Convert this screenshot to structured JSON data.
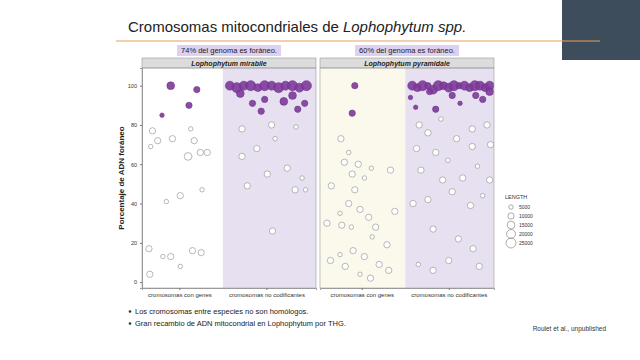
{
  "slide": {
    "title": "Cromosomas mitocondriales de",
    "title_italic": "Lophophytum spp.",
    "bullets": [
      "Los cromosomas entre especies no son homólogos.",
      "Gran recambio de ADN mitocondrial en Lophophytum por THG."
    ],
    "citation": "Roulet et al., unpublished"
  },
  "chart_data": [
    {
      "type": "scatter",
      "title": "Lophophytum mirabile",
      "subtitle": "74% del genoma es foráneo.",
      "y_label": "Porcentaje de ADN foráneo",
      "x": [
        0.9,
        0.8,
        1.11,
        1.2,
        0.69,
        0.75,
        0.67,
        0.92,
        1.13,
        1.17,
        1.1,
        1.24,
        1.32,
        1.01,
        0.85,
        1.26,
        0.65,
        0.81,
        0.9,
        1.01,
        1.15,
        1.25,
        0.66,
        1.58,
        1.66,
        1.74,
        1.82,
        1.9,
        1.98,
        2.06,
        2.14,
        2.22,
        2.3,
        2.38,
        2.46,
        1.7,
        1.98,
        2.3,
        2.44,
        1.84,
        2.2,
        2.36,
        1.94,
        1.72,
        2.06,
        2.34,
        1.89,
        2.1,
        1.72,
        2.24,
        2.41,
        2.01,
        2.33,
        2.45,
        1.78,
        2.07
      ],
      "values": [
        100,
        85,
        90,
        98,
        77,
        72,
        69,
        73,
        78,
        72,
        64,
        66,
        66,
        44,
        41,
        47,
        17,
        13,
        13,
        8,
        16,
        15,
        4,
        100,
        99,
        100,
        100,
        99,
        100,
        100,
        99,
        100,
        100,
        99,
        100,
        96,
        93,
        95,
        91,
        91,
        92,
        88,
        87,
        78,
        80,
        79,
        68,
        73,
        64,
        58,
        53,
        55,
        47,
        47,
        49,
        26
      ],
      "size": [
        15000,
        5000,
        10000,
        10000,
        10000,
        10000,
        5000,
        10000,
        5000,
        10000,
        15000,
        10000,
        10000,
        10000,
        5000,
        5000,
        10000,
        5000,
        10000,
        5000,
        10000,
        10000,
        10000,
        20000,
        25000,
        20000,
        25000,
        15000,
        25000,
        20000,
        25000,
        20000,
        25000,
        20000,
        25000,
        15000,
        10000,
        15000,
        10000,
        10000,
        15000,
        10000,
        10000,
        10000,
        10000,
        5000,
        10000,
        5000,
        10000,
        10000,
        5000,
        10000,
        10000,
        5000,
        10000,
        10000
      ],
      "colors": [
        "#7e3a9a",
        "#7e3a9a",
        "#7e3a9a",
        "#7e3a9a",
        "#ffffff",
        "#ffffff",
        "#ffffff",
        "#ffffff",
        "#ffffff",
        "#ffffff",
        "#ffffff",
        "#ffffff",
        "#ffffff",
        "#ffffff",
        "#ffffff",
        "#ffffff",
        "#ffffff",
        "#ffffff",
        "#ffffff",
        "#ffffff",
        "#ffffff",
        "#ffffff",
        "#ffffff",
        "#7e3a9a",
        "#7e3a9a",
        "#7e3a9a",
        "#7e3a9a",
        "#7e3a9a",
        "#7e3a9a",
        "#7e3a9a",
        "#7e3a9a",
        "#7e3a9a",
        "#7e3a9a",
        "#7e3a9a",
        "#7e3a9a",
        "#7e3a9a",
        "#7e3a9a",
        "#7e3a9a",
        "#7e3a9a",
        "#7e3a9a",
        "#7e3a9a",
        "#7e3a9a",
        "#7e3a9a",
        "#ffffff",
        "#ffffff",
        "#ffffff",
        "#ffffff",
        "#ffffff",
        "#ffffff",
        "#ffffff",
        "#ffffff",
        "#ffffff",
        "#ffffff",
        "#ffffff",
        "#ffffff",
        "#ffffff"
      ],
      "xlim": [
        0.57,
        2.57
      ],
      "xticks": [
        {
          "value": 1,
          "label": "cromosomas con genes"
        },
        {
          "value": 2,
          "label": "cromosomas no codificantes"
        }
      ],
      "ylim": [
        -3,
        109
      ],
      "yticks": [
        0,
        20,
        40,
        60,
        80,
        100
      ]
    },
    {
      "type": "scatter",
      "title": "Lophophytum pyramidale",
      "subtitle": "60% del genoma es foráneo.",
      "x": [
        0.92,
        0.89,
        0.76,
        0.85,
        0.96,
        0.8,
        1.11,
        0.89,
        0.65,
        1.03,
        0.92,
        1.33,
        0.85,
        0.75,
        0.98,
        0.6,
        0.77,
        0.88,
        1.08,
        1.16,
        1.38,
        1.29,
        1.12,
        0.9,
        1.03,
        0.75,
        0.64,
        0.81,
        1.2,
        0.98,
        1.31,
        1.1,
        1.58,
        1.64,
        1.7,
        1.76,
        1.82,
        1.88,
        1.94,
        2.0,
        2.06,
        2.12,
        2.18,
        2.24,
        2.3,
        2.36,
        2.42,
        2.47,
        1.56,
        1.78,
        2.04,
        2.31,
        2.47,
        1.62,
        1.85,
        2.13,
        2.39,
        1.66,
        1.76,
        1.91,
        2.09,
        2.27,
        2.44,
        1.63,
        1.85,
        1.99,
        2.27,
        2.48,
        1.68,
        1.93,
        2.16,
        2.33,
        2.47,
        1.76,
        2.04,
        2.25,
        2.39,
        1.59,
        1.82,
        2.11,
        2.28,
        2.0,
        1.65,
        1.82,
        2.35
      ],
      "values": [
        100,
        86,
        73,
        66,
        60,
        61,
        58,
        55,
        49,
        53,
        47,
        57,
        40,
        35,
        37,
        30,
        29,
        28,
        33,
        28,
        36,
        19,
        23,
        16,
        13,
        14,
        11,
        8,
        9,
        4,
        6,
        2,
        100,
        99,
        100,
        100,
        98,
        100,
        100,
        99,
        100,
        100,
        100,
        99,
        100,
        100,
        99,
        100,
        94,
        97,
        95,
        95,
        97,
        89,
        88,
        91,
        93,
        80,
        76,
        83,
        73,
        78,
        80,
        68,
        66,
        62,
        69,
        70,
        57,
        52,
        53,
        59,
        52,
        42,
        46,
        39,
        44,
        40,
        27,
        22,
        17,
        11,
        9,
        6,
        8
      ],
      "size": [
        10000,
        10000,
        10000,
        5000,
        10000,
        10000,
        5000,
        10000,
        10000,
        5000,
        10000,
        10000,
        10000,
        5000,
        10000,
        10000,
        10000,
        5000,
        10000,
        10000,
        10000,
        10000,
        5000,
        10000,
        10000,
        5000,
        10000,
        10000,
        10000,
        5000,
        10000,
        10000,
        20000,
        15000,
        25000,
        10000,
        20000,
        25000,
        15000,
        20000,
        25000,
        10000,
        20000,
        15000,
        25000,
        20000,
        15000,
        20000,
        5000,
        10000,
        10000,
        10000,
        15000,
        5000,
        10000,
        5000,
        10000,
        10000,
        10000,
        5000,
        10000,
        10000,
        10000,
        10000,
        10000,
        5000,
        10000,
        10000,
        10000,
        10000,
        10000,
        5000,
        10000,
        10000,
        10000,
        10000,
        5000,
        10000,
        10000,
        10000,
        10000,
        10000,
        5000,
        10000,
        10000
      ],
      "colors": [
        "#7e3a9a",
        "#7e3a9a",
        "#ffffff",
        "#ffffff",
        "#ffffff",
        "#ffffff",
        "#ffffff",
        "#ffffff",
        "#ffffff",
        "#ffffff",
        "#ffffff",
        "#ffffff",
        "#ffffff",
        "#ffffff",
        "#ffffff",
        "#ffffff",
        "#ffffff",
        "#ffffff",
        "#ffffff",
        "#ffffff",
        "#ffffff",
        "#ffffff",
        "#ffffff",
        "#ffffff",
        "#ffffff",
        "#ffffff",
        "#ffffff",
        "#ffffff",
        "#ffffff",
        "#ffffff",
        "#ffffff",
        "#ffffff",
        "#7e3a9a",
        "#7e3a9a",
        "#7e3a9a",
        "#7e3a9a",
        "#7e3a9a",
        "#7e3a9a",
        "#7e3a9a",
        "#7e3a9a",
        "#7e3a9a",
        "#7e3a9a",
        "#7e3a9a",
        "#7e3a9a",
        "#7e3a9a",
        "#7e3a9a",
        "#7e3a9a",
        "#7e3a9a",
        "#7e3a9a",
        "#7e3a9a",
        "#7e3a9a",
        "#7e3a9a",
        "#7e3a9a",
        "#7e3a9a",
        "#7e3a9a",
        "#7e3a9a",
        "#7e3a9a",
        "#ffffff",
        "#ffffff",
        "#ffffff",
        "#ffffff",
        "#ffffff",
        "#ffffff",
        "#ffffff",
        "#ffffff",
        "#ffffff",
        "#ffffff",
        "#ffffff",
        "#ffffff",
        "#ffffff",
        "#ffffff",
        "#ffffff",
        "#ffffff",
        "#ffffff",
        "#ffffff",
        "#ffffff",
        "#ffffff",
        "#ffffff",
        "#ffffff",
        "#ffffff",
        "#ffffff",
        "#ffffff",
        "#ffffff",
        "#ffffff",
        "#ffffff"
      ],
      "xlim": [
        0.52,
        2.52
      ],
      "xticks": [
        {
          "value": 1,
          "label": "cromosomas con genes"
        },
        {
          "value": 2,
          "label": "cromosomas no codificantes"
        }
      ],
      "ylim": [
        -3,
        109
      ],
      "tick_labels": "x",
      "size_legend": {
        "title": "LENGTH",
        "values": [
          5000,
          10000,
          15000,
          20000,
          25000
        ]
      }
    }
  ]
}
